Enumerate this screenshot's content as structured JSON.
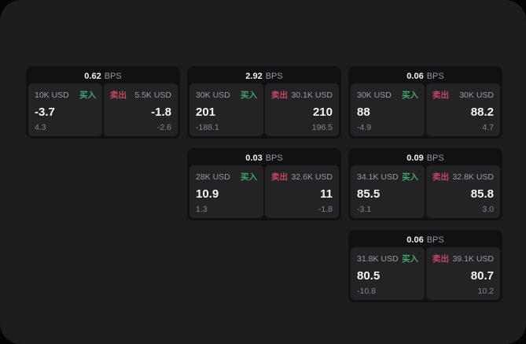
{
  "labels": {
    "buy": "买入",
    "sell": "卖出",
    "bps_unit": "BPS"
  },
  "colors": {
    "buy": "#3fa56c",
    "sell": "#c2485f",
    "screen_bg": "#1d1d1f",
    "card_bg": "#111113",
    "panel_bg": "#232326"
  },
  "cards": [
    {
      "bps": "0.62",
      "buy": {
        "size": "10K USD",
        "value": "-3.7",
        "sub": "4.3"
      },
      "sell": {
        "size": "5.5K USD",
        "value": "-1.8",
        "sub": "-2.6"
      }
    },
    {
      "bps": "2.92",
      "buy": {
        "size": "30K USD",
        "value": "201",
        "sub": "-188.1"
      },
      "sell": {
        "size": "30.1K USD",
        "value": "210",
        "sub": "196.5"
      }
    },
    {
      "bps": "0.06",
      "buy": {
        "size": "30K USD",
        "value": "88",
        "sub": "-4.9"
      },
      "sell": {
        "size": "30K USD",
        "value": "88.2",
        "sub": "4.7"
      }
    },
    {
      "bps": "0.03",
      "buy": {
        "size": "28K USD",
        "value": "10.9",
        "sub": "1.3"
      },
      "sell": {
        "size": "32.6K USD",
        "value": "11",
        "sub": "-1.8"
      }
    },
    {
      "bps": "0.09",
      "buy": {
        "size": "34.1K USD",
        "value": "85.5",
        "sub": "-3.1"
      },
      "sell": {
        "size": "32.8K USD",
        "value": "85.8",
        "sub": "3.0"
      }
    },
    {
      "bps": "0.06",
      "buy": {
        "size": "31.8K USD",
        "value": "80.5",
        "sub": "-10.8"
      },
      "sell": {
        "size": "39.1K USD",
        "value": "80.7",
        "sub": "10.2"
      }
    }
  ]
}
